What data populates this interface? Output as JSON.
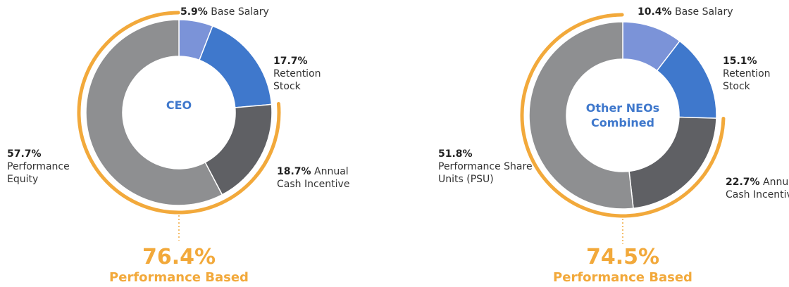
{
  "chart_data": [
    {
      "type": "pie",
      "center_label": "CEO",
      "categories": [
        "Base Salary",
        "Retention Stock",
        "Annual Cash Incentive",
        "Performance Equity"
      ],
      "values": [
        5.9,
        17.7,
        18.7,
        57.7
      ],
      "value_labels": [
        "5.9%",
        "17.7%",
        "18.7%",
        "57.7%"
      ],
      "colors": [
        "#7b93d8",
        "#3f78cc",
        "#5f6064",
        "#8e8f91"
      ],
      "performance_based": {
        "value": 76.4,
        "value_label": "76.4%",
        "label": "Performance Based",
        "color": "#f2a93b"
      }
    },
    {
      "type": "pie",
      "center_label": "Other NEOs Combined",
      "categories": [
        "Base Salary",
        "Retention Stock",
        "Annual Cash Incentive",
        "Performance Share Units (PSU)"
      ],
      "values": [
        10.4,
        15.1,
        22.7,
        51.8
      ],
      "value_labels": [
        "10.4%",
        "15.1%",
        "22.7%",
        "51.8%"
      ],
      "colors": [
        "#7b93d8",
        "#3f78cc",
        "#5f6064",
        "#8e8f91"
      ],
      "performance_based": {
        "value": 74.5,
        "value_label": "74.5%",
        "label": "Performance Based",
        "color": "#f2a93b"
      }
    }
  ]
}
